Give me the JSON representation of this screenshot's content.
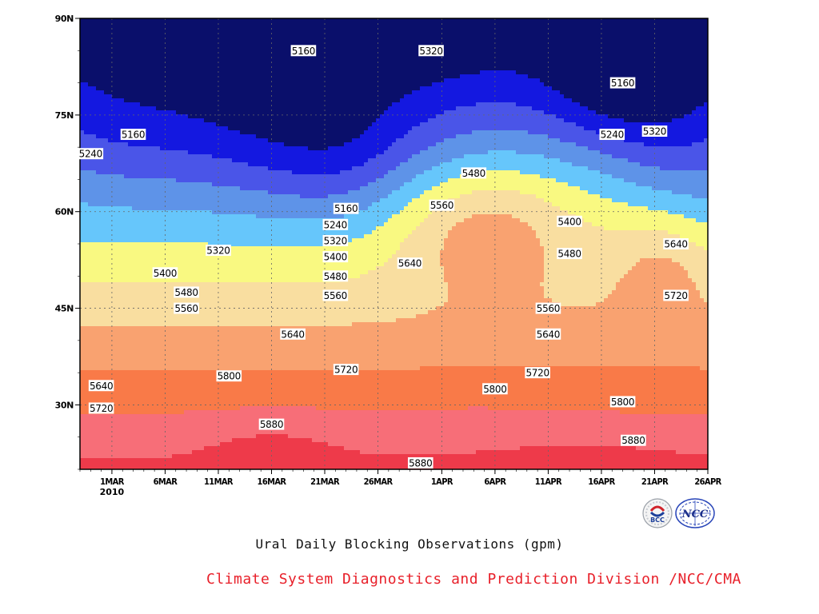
{
  "chart_data": {
    "type": "heatmap",
    "title": "Ural Daily Blocking Observations (gpm)",
    "xlabel": "",
    "ylabel": "",
    "x_ticks": [
      "1MAR",
      "6MAR",
      "11MAR",
      "16MAR",
      "21MAR",
      "26MAR",
      "1APR",
      "6APR",
      "11APR",
      "16APR",
      "21APR",
      "26APR"
    ],
    "x_year_label": "2010",
    "x_range": [
      "2010-02-26",
      "2010-04-26"
    ],
    "y_ticks": [
      "30N",
      "45N",
      "60N",
      "75N",
      "90N"
    ],
    "y_range": [
      "20N",
      "90N"
    ],
    "contour_levels": [
      5160,
      5240,
      5320,
      5400,
      5480,
      5560,
      5640,
      5720,
      5800,
      5880
    ],
    "fill_colors": [
      "#0a0f6b",
      "#1418e0",
      "#4a55e8",
      "#5e93e8",
      "#66c6fb",
      "#f9f981",
      "#f9dea0",
      "#f9a270",
      "#f97a48",
      "#f76e78",
      "#ee3a4a"
    ],
    "grid": true,
    "contour_labels": [
      {
        "value": "5160",
        "date": "2010-03-19",
        "lat": 85
      },
      {
        "value": "5160",
        "date": "2010-03-03",
        "lat": 72
      },
      {
        "value": "5240",
        "date": "2010-02-27",
        "lat": 69
      },
      {
        "value": "5320",
        "date": "2010-03-31",
        "lat": 85
      },
      {
        "value": "5160",
        "date": "2010-04-18",
        "lat": 80
      },
      {
        "value": "5240",
        "date": "2010-04-17",
        "lat": 72
      },
      {
        "value": "5320",
        "date": "2010-04-21",
        "lat": 72.5
      },
      {
        "value": "5480",
        "date": "2010-04-04",
        "lat": 66
      },
      {
        "value": "5560",
        "date": "2010-04-01",
        "lat": 61
      },
      {
        "value": "5160",
        "date": "2010-03-23",
        "lat": 60.5
      },
      {
        "value": "5240",
        "date": "2010-03-22",
        "lat": 58
      },
      {
        "value": "5320",
        "date": "2010-03-22",
        "lat": 55.5
      },
      {
        "value": "5400",
        "date": "2010-03-22",
        "lat": 53
      },
      {
        "value": "5480",
        "date": "2010-03-22",
        "lat": 50
      },
      {
        "value": "5560",
        "date": "2010-03-22",
        "lat": 47
      },
      {
        "value": "5400",
        "date": "2010-04-13",
        "lat": 58.5
      },
      {
        "value": "5480",
        "date": "2010-04-13",
        "lat": 53.5
      },
      {
        "value": "5320",
        "date": "2010-03-11",
        "lat": 54
      },
      {
        "value": "5400",
        "date": "2010-03-06",
        "lat": 50.5
      },
      {
        "value": "5480",
        "date": "2010-03-08",
        "lat": 47.5
      },
      {
        "value": "5560",
        "date": "2010-03-08",
        "lat": 45
      },
      {
        "value": "5640",
        "date": "2010-03-18",
        "lat": 41
      },
      {
        "value": "5640",
        "date": "2010-03-29",
        "lat": 52
      },
      {
        "value": "5720",
        "date": "2010-03-23",
        "lat": 35.5
      },
      {
        "value": "5800",
        "date": "2010-03-12",
        "lat": 34.5
      },
      {
        "value": "5880",
        "date": "2010-03-16",
        "lat": 27
      },
      {
        "value": "5640",
        "date": "2010-02-28",
        "lat": 33
      },
      {
        "value": "5720",
        "date": "2010-02-28",
        "lat": 29.5
      },
      {
        "value": "5560",
        "date": "2010-04-11",
        "lat": 45
      },
      {
        "value": "5640",
        "date": "2010-04-11",
        "lat": 41
      },
      {
        "value": "5720",
        "date": "2010-04-10",
        "lat": 35
      },
      {
        "value": "5800",
        "date": "2010-04-06",
        "lat": 32.5
      },
      {
        "value": "5800",
        "date": "2010-04-18",
        "lat": 30.5
      },
      {
        "value": "5880",
        "date": "2010-04-19",
        "lat": 24.5
      },
      {
        "value": "5880",
        "date": "2010-03-30",
        "lat": 21
      },
      {
        "value": "5640",
        "date": "2010-04-23",
        "lat": 55
      },
      {
        "value": "5720",
        "date": "2010-04-23",
        "lat": 47
      }
    ]
  },
  "footer": {
    "credit": "Climate System Diagnostics and Prediction Division /NCC/CMA",
    "logo_left": "BCC",
    "logo_right": "NCC"
  }
}
